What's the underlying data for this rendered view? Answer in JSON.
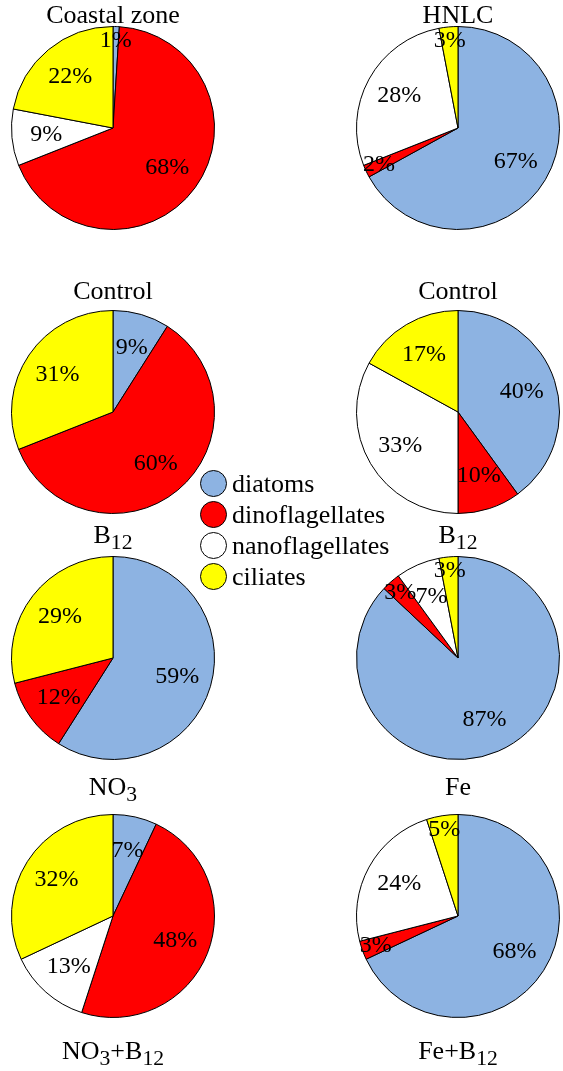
{
  "chart_data": [
    {
      "type": "pie",
      "title": "Control",
      "annotations": [
        "Coastal zone"
      ],
      "categories": [
        "diatoms",
        "dinoflagellates",
        "nanoflagellates",
        "ciliates"
      ],
      "colors": [
        "#8db3e2",
        "#ff0000",
        "#ffffff",
        "#ffff00"
      ],
      "values": [
        1,
        68,
        9,
        22
      ],
      "value_labels": [
        "1%",
        "68%",
        "9%",
        "22%"
      ],
      "legend": "right"
    },
    {
      "type": "pie",
      "title": "Control",
      "annotations": [
        "HNLC"
      ],
      "categories": [
        null,
        null,
        null,
        null
      ],
      "colors": [
        "#8db3e2",
        "#ff0000",
        "#ffffff",
        "#ffff00"
      ],
      "values": [
        67,
        2,
        28,
        3
      ],
      "value_labels": [
        "67%",
        "2%",
        "28%",
        "3%"
      ]
    },
    {
      "type": "pie",
      "title": "B$_{12}$",
      "categories": [
        null,
        null,
        null,
        null
      ],
      "colors": [
        "#8db3e2",
        "#ff0000",
        "#ffffff",
        "#ffff00"
      ],
      "values": [
        9,
        60,
        0,
        31
      ],
      "value_labels": [
        "9%",
        "60%",
        null,
        "31%"
      ]
    },
    {
      "type": "pie",
      "title": "B$_{12}$",
      "categories": [
        null,
        null,
        null,
        null
      ],
      "colors": [
        "#8db3e2",
        "#ff0000",
        "#ffffff",
        "#ffff00"
      ],
      "values": [
        40,
        10,
        33,
        17
      ],
      "value_labels": [
        "40%",
        "10%",
        "33%",
        "17%"
      ]
    },
    {
      "type": "pie",
      "title": "NO$_{3}$",
      "categories": [
        null,
        null,
        null,
        null
      ],
      "colors": [
        "#8db3e2",
        "#ff0000",
        "#ffffff",
        "#ffff00"
      ],
      "values": [
        59,
        12,
        0,
        29
      ],
      "value_labels": [
        "59%",
        "12%",
        null,
        "29%"
      ]
    },
    {
      "type": "pie",
      "title": "Fe",
      "categories": [
        null,
        null,
        null,
        null
      ],
      "colors": [
        "#8db3e2",
        "#ff0000",
        "#ffffff",
        "#ffff00"
      ],
      "values": [
        87,
        3,
        7,
        3
      ],
      "value_labels": [
        "87%",
        "3%",
        "7%",
        "3%"
      ]
    },
    {
      "type": "pie",
      "title": "NO$_{3}$+B$_{12}$",
      "categories": [
        null,
        null,
        null,
        null
      ],
      "colors": [
        "#8db3e2",
        "#ff0000",
        "#ffffff",
        "#ffff00"
      ],
      "values": [
        7,
        48,
        13,
        32
      ],
      "value_labels": [
        "7%",
        "48%",
        "13%",
        "32%"
      ]
    },
    {
      "type": "pie",
      "title": "Fe+B$_{12}$",
      "categories": [
        null,
        null,
        null,
        null
      ],
      "colors": [
        "#8db3e2",
        "#ff0000",
        "#ffffff",
        "#ffff00"
      ],
      "values": [
        68,
        3,
        24,
        5
      ],
      "value_labels": [
        "68%",
        "3%",
        "24%",
        "5%"
      ]
    }
  ]
}
